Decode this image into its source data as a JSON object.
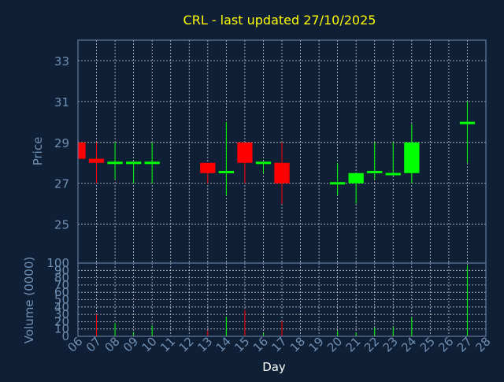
{
  "chart_data": {
    "type": "candlestick",
    "title": "CRL - last updated 27/10/2025",
    "xlabel": "Day",
    "ylabel_price": "Price",
    "ylabel_volume": "Volume (0000)",
    "days": [
      "06",
      "07",
      "08",
      "09",
      "10",
      "11",
      "12",
      "13",
      "14",
      "15",
      "16",
      "17",
      "18",
      "19",
      "20",
      "21",
      "22",
      "23",
      "24",
      "25",
      "26",
      "27",
      "28"
    ],
    "price_ticks": [
      25,
      27,
      29,
      31,
      33
    ],
    "price_ylim": [
      23.1,
      34.0
    ],
    "volume_ticks": [
      0,
      10,
      20,
      30,
      40,
      50,
      60,
      70,
      80,
      90,
      100
    ],
    "volume_ylim": [
      0,
      100
    ],
    "grid": true,
    "candles": [
      {
        "day": "06",
        "open": 29.0,
        "high": 29.0,
        "low": 28.2,
        "close": 28.2,
        "volume": 9
      },
      {
        "day": "07",
        "open": 28.2,
        "high": 29.0,
        "low": 27.0,
        "close": 28.0,
        "volume": 30
      },
      {
        "day": "08",
        "open": 28.0,
        "high": 29.0,
        "low": 27.2,
        "close": 28.0,
        "volume": 18
      },
      {
        "day": "09",
        "open": 28.0,
        "high": 28.0,
        "low": 27.0,
        "close": 28.0,
        "volume": 6
      },
      {
        "day": "10",
        "open": 28.0,
        "high": 29.0,
        "low": 27.0,
        "close": 28.0,
        "volume": 15
      },
      {
        "day": "13",
        "open": 28.0,
        "high": 28.0,
        "low": 27.0,
        "close": 27.5,
        "volume": 8
      },
      {
        "day": "14",
        "open": 27.5,
        "high": 30.0,
        "low": 26.4,
        "close": 27.6,
        "volume": 27
      },
      {
        "day": "15",
        "open": 29.0,
        "high": 29.0,
        "low": 27.0,
        "close": 28.0,
        "volume": 36
      },
      {
        "day": "16",
        "open": 28.0,
        "high": 28.0,
        "low": 27.5,
        "close": 28.0,
        "volume": 5
      },
      {
        "day": "17",
        "open": 28.0,
        "high": 29.0,
        "low": 26.0,
        "close": 27.0,
        "volume": 21
      },
      {
        "day": "20",
        "open": 27.0,
        "high": 28.0,
        "low": 26.4,
        "close": 27.0,
        "volume": 7
      },
      {
        "day": "21",
        "open": 27.0,
        "high": 27.5,
        "low": 26.0,
        "close": 27.5,
        "volume": 5
      },
      {
        "day": "22",
        "open": 27.5,
        "high": 29.0,
        "low": 27.2,
        "close": 27.6,
        "volume": 12
      },
      {
        "day": "23",
        "open": 27.4,
        "high": 29.0,
        "low": 27.4,
        "close": 27.5,
        "volume": 13
      },
      {
        "day": "24",
        "open": 27.5,
        "high": 29.9,
        "low": 27.0,
        "close": 29.0,
        "volume": 26
      },
      {
        "day": "27",
        "open": 29.9,
        "high": 31.0,
        "low": 28.0,
        "close": 30.0,
        "volume": 97
      }
    ],
    "colors": {
      "background": "#0f1f35",
      "axes": "#6f8fb2",
      "grid": "#ffffff",
      "title": "#ffff00",
      "up": "#00ff00",
      "down": "#ff0000"
    }
  }
}
